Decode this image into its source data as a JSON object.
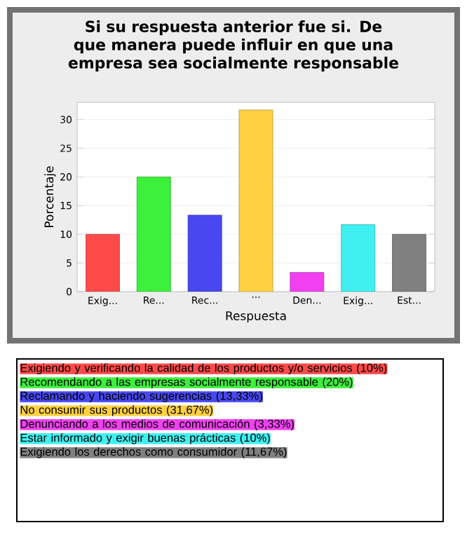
{
  "chart_data": {
    "type": "bar",
    "title": "Si su respuesta anterior fue si. De que manera puede influir en que una empresa sea socialmente responsable",
    "xlabel": "Respuesta",
    "ylabel": "Porcentaje",
    "categories": [
      "Exig...",
      "Re...",
      "Rec...",
      "...",
      "Den...",
      "Exig...",
      "Est..."
    ],
    "values": [
      10,
      20,
      13.33,
      31.67,
      3.33,
      11.67,
      10
    ],
    "colors": [
      "#ff4a4a",
      "#3cf03c",
      "#4848f0",
      "#ffd040",
      "#f040f0",
      "#40f0f0",
      "#808080"
    ],
    "ylim": [
      0,
      33
    ],
    "yticks": [
      0,
      5,
      10,
      15,
      20,
      25,
      30
    ],
    "grid": "y",
    "annotations": [
      "Exigiendo y verificando la calidad de los productos y/o servicios (10%)",
      "Recomendando a las empresas socialmente responsable (20%)",
      "Reclamando y haciendo sugerencias (13,33%)",
      "No consumir sus productos (31,67%)",
      "Denunciando a los medios de comunicación (3,33%)",
      "Estar informado y exigir buenas prácticas (10%)",
      "Exigiendo los derechos como consumidor (11,67%)"
    ]
  }
}
